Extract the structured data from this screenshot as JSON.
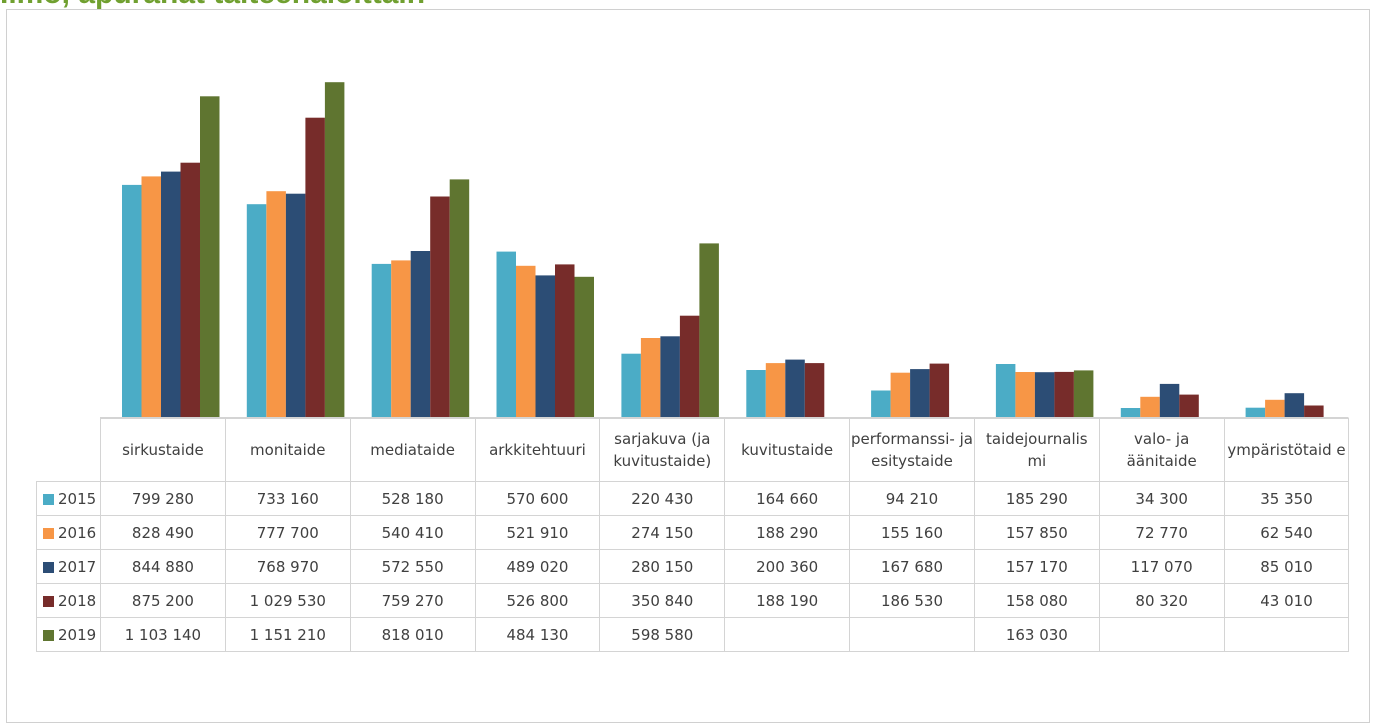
{
  "heading": {
    "text": "Ilmo, apurahat taiteenaloittain",
    "color": "#70a030"
  },
  "chart_data": {
    "type": "bar",
    "categories": [
      "sirkustaide",
      "monitaide",
      "mediataide",
      "arkkitehtuuri",
      "sarjakuva (ja kuvitustaide)",
      "kuvitustaide",
      "performanssi- ja esitystaide",
      "taidejournalismi",
      "valo- ja äänitaide",
      "ympäristötaide"
    ],
    "category_labels": [
      "sirkustaide",
      "monitaide",
      "mediataide",
      "arkkitehtuuri",
      "sarjakuva (ja kuvitustaide)",
      "kuvitustaide",
      "performanssi- ja esitystaide",
      "taidejournalis mi",
      "valo- ja äänitaide",
      "ympäristötaid e"
    ],
    "series": [
      {
        "name": "2015",
        "color": "#4bacc6",
        "values": [
          799280,
          733160,
          528180,
          570600,
          220430,
          164660,
          94210,
          185290,
          34300,
          35350
        ],
        "labels": [
          "799 280",
          "733 160",
          "528 180",
          "570 600",
          "220 430",
          "164 660",
          "94 210",
          "185 290",
          "34 300",
          "35 350"
        ]
      },
      {
        "name": "2016",
        "color": "#f79646",
        "values": [
          828490,
          777700,
          540410,
          521910,
          274150,
          188290,
          155160,
          157850,
          72770,
          62540
        ],
        "labels": [
          "828 490",
          "777 700",
          "540 410",
          "521 910",
          "274 150",
          "188 290",
          "155 160",
          "157 850",
          "72 770",
          "62 540"
        ]
      },
      {
        "name": "2017",
        "color": "#2c4d75",
        "values": [
          844880,
          768970,
          572550,
          489020,
          280150,
          200360,
          167680,
          157170,
          117070,
          85010
        ],
        "labels": [
          "844 880",
          "768 970",
          "572 550",
          "489 020",
          "280 150",
          "200 360",
          "167 680",
          "157 170",
          "117 070",
          "85 010"
        ]
      },
      {
        "name": "2018",
        "color": "#772c2a",
        "values": [
          875200,
          1029530,
          759270,
          526800,
          350840,
          188190,
          186530,
          158080,
          80320,
          43010
        ],
        "labels": [
          "875 200",
          "1 029 530",
          "759 270",
          "526 800",
          "350 840",
          "188 190",
          "186 530",
          "158 080",
          "80 320",
          "43 010"
        ]
      },
      {
        "name": "2019",
        "color": "#5f7530",
        "values": [
          1103140,
          1151210,
          818010,
          484130,
          598580,
          null,
          null,
          163030,
          null,
          null
        ],
        "labels": [
          "1 103 140",
          "1 151 210",
          "818 010",
          "484 130",
          "598 580",
          "",
          "",
          "163 030",
          "",
          ""
        ]
      }
    ],
    "ylim": [
      0,
      1200000
    ],
    "legend": "data-table",
    "grid": false
  }
}
